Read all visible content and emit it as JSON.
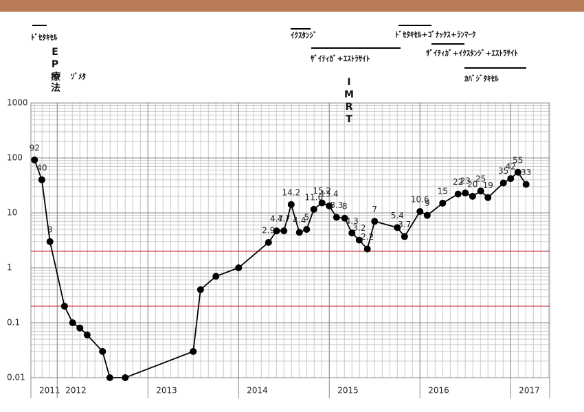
{
  "chart_data": {
    "type": "line",
    "x": [
      2011.75,
      2011.83,
      2011.92,
      2012.08,
      2012.17,
      2012.25,
      2012.33,
      2012.5,
      2012.58,
      2012.75,
      2013.5,
      2013.58,
      2013.75,
      2014.0,
      2014.33,
      2014.42,
      2014.5,
      2014.58,
      2014.67,
      2014.75,
      2014.83,
      2014.92,
      2015.0,
      2015.08,
      2015.17,
      2015.25,
      2015.33,
      2015.42,
      2015.5,
      2015.75,
      2015.83,
      2016.0,
      2016.08,
      2016.25,
      2016.42,
      2016.5,
      2016.58,
      2016.67,
      2016.75,
      2016.92,
      2017.0,
      2017.08,
      2017.17
    ],
    "values": [
      92,
      40,
      3,
      0.2,
      0.1,
      0.08,
      0.06,
      0.03,
      0.01,
      0.01,
      0.03,
      0.4,
      0.7,
      1,
      2.9,
      4.7,
      4.7,
      14.2,
      4.4,
      5,
      11.6,
      15.2,
      13.4,
      8.3,
      8,
      4.3,
      3.2,
      2.2,
      7,
      5.4,
      3.7,
      10.6,
      9,
      15,
      22,
      23,
      20,
      25,
      19,
      35,
      42,
      55,
      33
    ],
    "value_labels": [
      "92",
      "40",
      "3",
      null,
      null,
      null,
      null,
      null,
      null,
      null,
      null,
      null,
      null,
      null,
      "2.9",
      "4.7",
      "4.7",
      "14.2",
      "4.4",
      "5",
      "11.6",
      "15.2",
      "13.4",
      "8.3",
      "8",
      "4.3",
      "3.2",
      "2.2",
      "7",
      "5.4",
      "3.7",
      "10.6",
      "9",
      "15",
      "22",
      "23",
      "20",
      "25",
      "19",
      "35",
      "42",
      "55",
      "33"
    ],
    "color": "#000000",
    "xlim": [
      2011.71,
      2017.43
    ],
    "xticks": [
      2011,
      2012,
      2013,
      2014,
      2015,
      2016,
      2017
    ],
    "ylim": [
      0.01,
      1000
    ],
    "yticks": [
      0.01,
      0.1,
      1,
      10,
      100,
      1000
    ],
    "log_y": true,
    "grid": true,
    "reference_lines": [
      2,
      0.2
    ],
    "reference_color": "#cc2222",
    "annotations": [
      "ﾄﾞｾﾀｷｾﾙ",
      "EP療法",
      "ｿﾞﾒﾀ",
      "ｲｸｽﾀﾝｼﾞ",
      "ｻﾞｲﾃｨｶﾞ+ｴｽﾄﾗｻｲﾄ",
      "IMRT",
      "ﾄﾞｾﾀｷｾﾙ+ｺﾞﾅｯｸｽ+ﾗﾝﾏｰｸ",
      "ｻﾞｲﾃｨｶﾞ+ｲｸｽﾀﾝｼﾞ+ｴｽﾄﾗｻｲﾄ",
      "ｶﾊﾞｼﾞﾀｷｾﾙ"
    ]
  }
}
